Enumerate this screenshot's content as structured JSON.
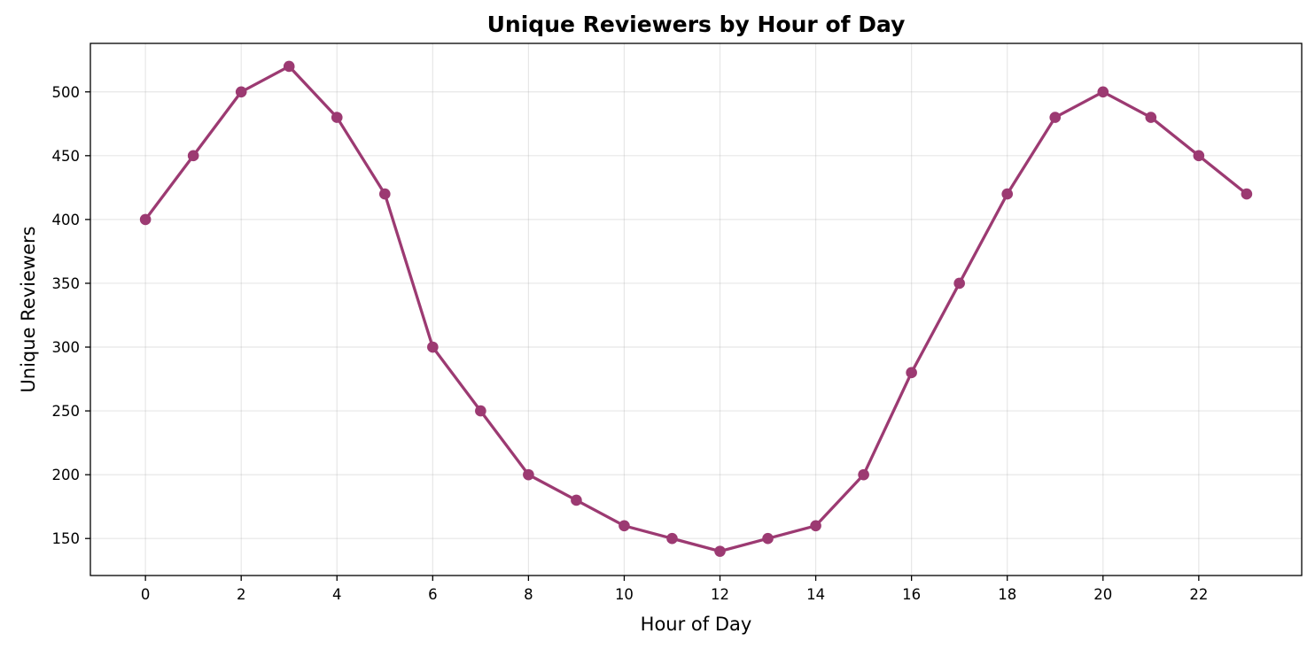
{
  "chart_data": {
    "type": "line",
    "title": "Unique Reviewers by Hour of Day",
    "xlabel": "Hour of Day",
    "ylabel": "Unique Reviewers",
    "x": [
      0,
      1,
      2,
      3,
      4,
      5,
      6,
      7,
      8,
      9,
      10,
      11,
      12,
      13,
      14,
      15,
      16,
      17,
      18,
      19,
      20,
      21,
      22,
      23
    ],
    "series": [
      {
        "values": [
          400,
          450,
          500,
          520,
          480,
          420,
          300,
          250,
          200,
          180,
          160,
          150,
          140,
          150,
          160,
          200,
          280,
          350,
          420,
          480,
          500,
          480,
          450,
          420
        ],
        "color": "#9c3a72",
        "marker": "circle"
      }
    ],
    "xlim": [
      -1.15,
      24.15
    ],
    "ylim": [
      121,
      538
    ],
    "xticks": [
      0,
      2,
      4,
      6,
      8,
      10,
      12,
      14,
      16,
      18,
      20,
      22
    ],
    "yticks": [
      150,
      200,
      250,
      300,
      350,
      400,
      450,
      500
    ],
    "grid": true,
    "legend": "none"
  }
}
